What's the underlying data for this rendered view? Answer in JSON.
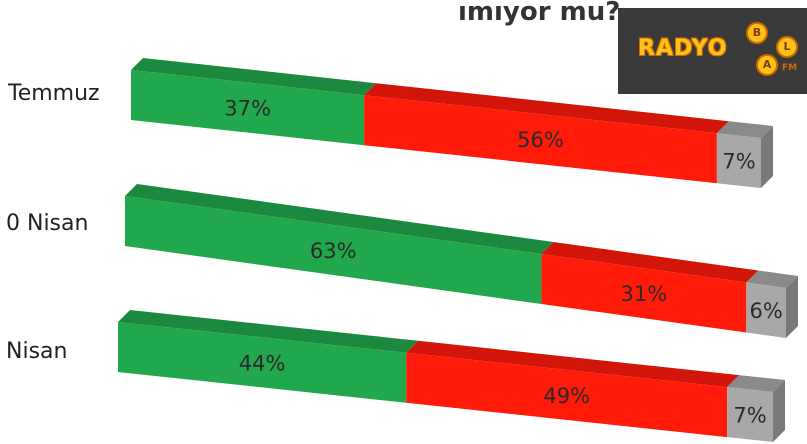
{
  "chart_data": {
    "type": "bar",
    "stacked": true,
    "orientation": "horizontal",
    "title": "ımıyor mu?",
    "categories": [
      "Temmuz",
      "0 Nisan",
      "Nisan"
    ],
    "series": [
      {
        "color": "#22a84c",
        "values": [
          37,
          63,
          44
        ]
      },
      {
        "color": "#ff1a0a",
        "values": [
          56,
          31,
          49
        ]
      },
      {
        "color": "#a8a8a8",
        "values": [
          7,
          6,
          7
        ]
      }
    ],
    "value_labels": [
      [
        "37%",
        "56%",
        "7%"
      ],
      [
        "63%",
        "31%",
        "6%"
      ],
      [
        "44%",
        "49%",
        "7%"
      ]
    ],
    "xlim": [
      0,
      100
    ],
    "grid": false,
    "legend": "none"
  },
  "logo": {
    "text": "RADYO",
    "letters": [
      "B",
      "A",
      "L"
    ],
    "suffix": "FM",
    "background": "#3a3a3a",
    "color": "#ffc21a"
  }
}
